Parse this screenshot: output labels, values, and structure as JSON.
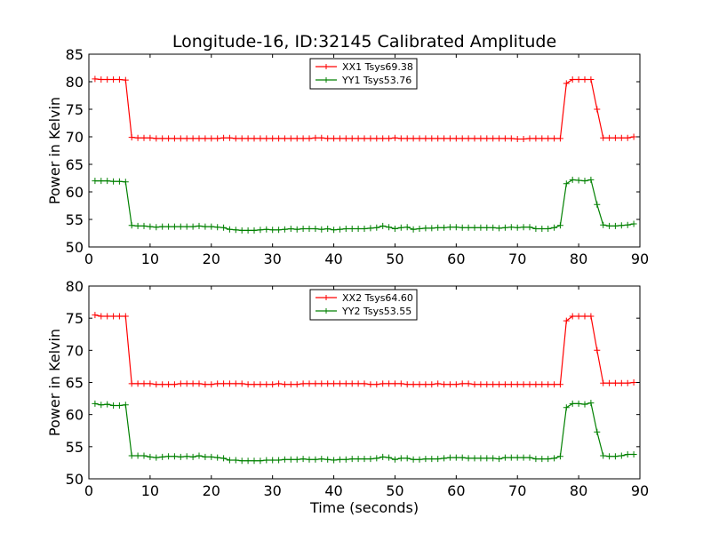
{
  "figure": {
    "title": "Longitude-16, ID:32145 Calibrated Amplitude"
  },
  "chart_data": [
    {
      "type": "line",
      "title": "Longitude-16, ID:32145 Calibrated Amplitude",
      "xlabel": "",
      "ylabel": "Power in Kelvin",
      "xlim": [
        0,
        90
      ],
      "ylim": [
        50,
        85
      ],
      "xticks": [
        0,
        10,
        20,
        30,
        40,
        50,
        60,
        70,
        80,
        90
      ],
      "yticks": [
        50,
        55,
        60,
        65,
        70,
        75,
        80,
        85
      ],
      "grid": false,
      "legend_position": "top-center",
      "series": [
        {
          "name": "XX1 Tsys69.38",
          "color": "#ff0000",
          "x": [
            1,
            2,
            3,
            4,
            5,
            6,
            7,
            8,
            9,
            10,
            11,
            12,
            13,
            14,
            15,
            16,
            17,
            18,
            19,
            20,
            21,
            22,
            23,
            24,
            25,
            26,
            27,
            28,
            29,
            30,
            31,
            32,
            33,
            34,
            35,
            36,
            37,
            38,
            39,
            40,
            41,
            42,
            43,
            44,
            45,
            46,
            47,
            48,
            49,
            50,
            51,
            52,
            53,
            54,
            55,
            56,
            57,
            58,
            59,
            60,
            61,
            62,
            63,
            64,
            65,
            66,
            67,
            68,
            69,
            70,
            71,
            72,
            73,
            74,
            75,
            76,
            77,
            78,
            79,
            80,
            81,
            82,
            83,
            84,
            85,
            86,
            87,
            88,
            89
          ],
          "y": [
            80.5,
            80.4,
            80.4,
            80.4,
            80.4,
            80.3,
            69.9,
            69.8,
            69.8,
            69.8,
            69.7,
            69.7,
            69.7,
            69.7,
            69.7,
            69.7,
            69.7,
            69.7,
            69.7,
            69.7,
            69.7,
            69.8,
            69.8,
            69.7,
            69.7,
            69.7,
            69.7,
            69.7,
            69.7,
            69.7,
            69.7,
            69.7,
            69.7,
            69.7,
            69.7,
            69.7,
            69.8,
            69.8,
            69.7,
            69.7,
            69.7,
            69.7,
            69.7,
            69.7,
            69.7,
            69.7,
            69.7,
            69.7,
            69.7,
            69.8,
            69.7,
            69.7,
            69.7,
            69.7,
            69.7,
            69.7,
            69.7,
            69.7,
            69.7,
            69.7,
            69.7,
            69.7,
            69.7,
            69.7,
            69.7,
            69.7,
            69.7,
            69.7,
            69.7,
            69.6,
            69.6,
            69.7,
            69.7,
            69.7,
            69.7,
            69.7,
            69.7,
            79.7,
            80.4,
            80.4,
            80.4,
            80.4,
            75.0,
            69.8,
            69.8,
            69.8,
            69.8,
            69.8,
            70.0
          ]
        },
        {
          "name": "YY1 Tsys53.76",
          "color": "#008000",
          "x": [
            1,
            2,
            3,
            4,
            5,
            6,
            7,
            8,
            9,
            10,
            11,
            12,
            13,
            14,
            15,
            16,
            17,
            18,
            19,
            20,
            21,
            22,
            23,
            24,
            25,
            26,
            27,
            28,
            29,
            30,
            31,
            32,
            33,
            34,
            35,
            36,
            37,
            38,
            39,
            40,
            41,
            42,
            43,
            44,
            45,
            46,
            47,
            48,
            49,
            50,
            51,
            52,
            53,
            54,
            55,
            56,
            57,
            58,
            59,
            60,
            61,
            62,
            63,
            64,
            65,
            66,
            67,
            68,
            69,
            70,
            71,
            72,
            73,
            74,
            75,
            76,
            77,
            78,
            79,
            80,
            81,
            82,
            83,
            84,
            85,
            86,
            87,
            88,
            89
          ],
          "y": [
            62.0,
            62.0,
            62.0,
            61.9,
            61.9,
            61.8,
            53.9,
            53.8,
            53.8,
            53.7,
            53.6,
            53.7,
            53.7,
            53.7,
            53.7,
            53.7,
            53.7,
            53.8,
            53.7,
            53.7,
            53.6,
            53.5,
            53.2,
            53.1,
            53.0,
            53.0,
            53.0,
            53.1,
            53.2,
            53.1,
            53.1,
            53.2,
            53.3,
            53.2,
            53.3,
            53.3,
            53.3,
            53.2,
            53.3,
            53.1,
            53.2,
            53.3,
            53.3,
            53.3,
            53.3,
            53.4,
            53.5,
            53.8,
            53.6,
            53.3,
            53.5,
            53.6,
            53.2,
            53.3,
            53.4,
            53.4,
            53.5,
            53.5,
            53.6,
            53.6,
            53.5,
            53.5,
            53.5,
            53.5,
            53.5,
            53.5,
            53.4,
            53.5,
            53.6,
            53.5,
            53.6,
            53.6,
            53.3,
            53.3,
            53.3,
            53.5,
            53.9,
            61.5,
            62.2,
            62.1,
            62.0,
            62.2,
            57.7,
            54.0,
            53.8,
            53.8,
            53.9,
            54.0,
            54.2
          ]
        }
      ]
    },
    {
      "type": "line",
      "title": "",
      "xlabel": "Time (seconds)",
      "ylabel": "Power in Kelvin",
      "xlim": [
        0,
        90
      ],
      "ylim": [
        50,
        80
      ],
      "xticks": [
        0,
        10,
        20,
        30,
        40,
        50,
        60,
        70,
        80,
        90
      ],
      "yticks": [
        50,
        55,
        60,
        65,
        70,
        75,
        80
      ],
      "grid": false,
      "legend_position": "top-center",
      "series": [
        {
          "name": "XX2 Tsys64.60",
          "color": "#ff0000",
          "x": [
            1,
            2,
            3,
            4,
            5,
            6,
            7,
            8,
            9,
            10,
            11,
            12,
            13,
            14,
            15,
            16,
            17,
            18,
            19,
            20,
            21,
            22,
            23,
            24,
            25,
            26,
            27,
            28,
            29,
            30,
            31,
            32,
            33,
            34,
            35,
            36,
            37,
            38,
            39,
            40,
            41,
            42,
            43,
            44,
            45,
            46,
            47,
            48,
            49,
            50,
            51,
            52,
            53,
            54,
            55,
            56,
            57,
            58,
            59,
            60,
            61,
            62,
            63,
            64,
            65,
            66,
            67,
            68,
            69,
            70,
            71,
            72,
            73,
            74,
            75,
            76,
            77,
            78,
            79,
            80,
            81,
            82,
            83,
            84,
            85,
            86,
            87,
            88,
            89
          ],
          "y": [
            75.5,
            75.3,
            75.3,
            75.3,
            75.3,
            75.3,
            64.8,
            64.8,
            64.8,
            64.8,
            64.7,
            64.7,
            64.7,
            64.7,
            64.8,
            64.8,
            64.8,
            64.8,
            64.7,
            64.7,
            64.8,
            64.8,
            64.8,
            64.8,
            64.8,
            64.7,
            64.7,
            64.7,
            64.7,
            64.7,
            64.8,
            64.7,
            64.7,
            64.7,
            64.8,
            64.8,
            64.8,
            64.8,
            64.8,
            64.8,
            64.8,
            64.8,
            64.8,
            64.8,
            64.8,
            64.7,
            64.7,
            64.8,
            64.8,
            64.8,
            64.8,
            64.7,
            64.7,
            64.7,
            64.7,
            64.7,
            64.8,
            64.7,
            64.7,
            64.7,
            64.8,
            64.8,
            64.7,
            64.7,
            64.7,
            64.7,
            64.7,
            64.7,
            64.7,
            64.7,
            64.7,
            64.7,
            64.7,
            64.7,
            64.7,
            64.7,
            64.7,
            74.6,
            75.3,
            75.3,
            75.3,
            75.3,
            70.0,
            64.9,
            64.9,
            64.9,
            64.9,
            64.9,
            65.0
          ]
        },
        {
          "name": "YY2 Tsys53.55",
          "color": "#008000",
          "x": [
            1,
            2,
            3,
            4,
            5,
            6,
            7,
            8,
            9,
            10,
            11,
            12,
            13,
            14,
            15,
            16,
            17,
            18,
            19,
            20,
            21,
            22,
            23,
            24,
            25,
            26,
            27,
            28,
            29,
            30,
            31,
            32,
            33,
            34,
            35,
            36,
            37,
            38,
            39,
            40,
            41,
            42,
            43,
            44,
            45,
            46,
            47,
            48,
            49,
            50,
            51,
            52,
            53,
            54,
            55,
            56,
            57,
            58,
            59,
            60,
            61,
            62,
            63,
            64,
            65,
            66,
            67,
            68,
            69,
            70,
            71,
            72,
            73,
            74,
            75,
            76,
            77,
            78,
            79,
            80,
            81,
            82,
            83,
            84,
            85,
            86,
            87,
            88,
            89
          ],
          "y": [
            61.7,
            61.5,
            61.6,
            61.4,
            61.4,
            61.5,
            53.6,
            53.6,
            53.6,
            53.4,
            53.3,
            53.4,
            53.5,
            53.5,
            53.4,
            53.5,
            53.4,
            53.6,
            53.4,
            53.4,
            53.3,
            53.2,
            52.9,
            52.9,
            52.8,
            52.8,
            52.8,
            52.8,
            52.9,
            52.9,
            52.9,
            53.0,
            53.0,
            53.0,
            53.1,
            53.0,
            53.0,
            53.1,
            53.0,
            52.9,
            53.0,
            53.0,
            53.1,
            53.1,
            53.1,
            53.1,
            53.2,
            53.4,
            53.3,
            53.0,
            53.2,
            53.2,
            53.0,
            53.0,
            53.1,
            53.1,
            53.1,
            53.2,
            53.3,
            53.3,
            53.3,
            53.2,
            53.2,
            53.2,
            53.2,
            53.2,
            53.1,
            53.3,
            53.3,
            53.3,
            53.3,
            53.3,
            53.1,
            53.1,
            53.1,
            53.2,
            53.5,
            61.1,
            61.7,
            61.7,
            61.6,
            61.8,
            57.3,
            53.6,
            53.5,
            53.5,
            53.6,
            53.8,
            53.8
          ]
        }
      ]
    }
  ]
}
